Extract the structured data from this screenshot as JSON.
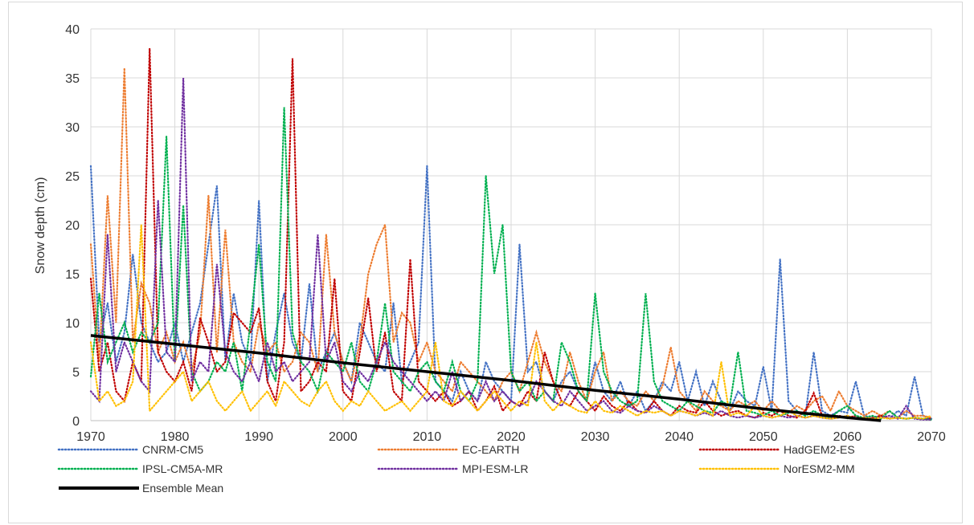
{
  "chart_data": {
    "type": "line",
    "title": "",
    "xlabel": "",
    "ylabel": "Snow depth (cm)",
    "xlim": [
      1970,
      2070
    ],
    "ylim": [
      0,
      40
    ],
    "x_ticks": [
      1970,
      1980,
      1990,
      2000,
      2010,
      2020,
      2030,
      2040,
      2050,
      2060,
      2070
    ],
    "y_ticks": [
      0,
      5,
      10,
      15,
      20,
      25,
      30,
      35,
      40
    ],
    "grid": true,
    "legend_position": "bottom",
    "series": [
      {
        "name": "CNRM-CM5",
        "color": "#4472c4",
        "style": "dotted",
        "x": [
          1970,
          1971,
          1972,
          1973,
          1974,
          1975,
          1976,
          1977,
          1978,
          1979,
          1980,
          1981,
          1982,
          1983,
          1984,
          1985,
          1986,
          1987,
          1988,
          1989,
          1990,
          1991,
          1992,
          1993,
          1994,
          1995,
          1996,
          1997,
          1998,
          1999,
          2000,
          2001,
          2002,
          2003,
          2004,
          2005,
          2006,
          2007,
          2008,
          2009,
          2010,
          2011,
          2012,
          2013,
          2014,
          2015,
          2016,
          2017,
          2018,
          2019,
          2020,
          2021,
          2022,
          2023,
          2024,
          2025,
          2026,
          2027,
          2028,
          2029,
          2030,
          2031,
          2032,
          2033,
          2034,
          2035,
          2036,
          2037,
          2038,
          2039,
          2040,
          2041,
          2042,
          2043,
          2044,
          2045,
          2046,
          2047,
          2048,
          2049,
          2050,
          2051,
          2052,
          2053,
          2054,
          2055,
          2056,
          2057,
          2058,
          2059,
          2060,
          2061,
          2062,
          2063,
          2064,
          2065,
          2066,
          2067,
          2068,
          2069,
          2070
        ],
        "values": [
          26,
          8,
          12,
          6,
          9,
          17,
          10,
          8,
          6,
          7,
          10,
          6,
          9,
          12,
          18,
          24,
          6,
          13,
          8,
          6,
          22.5,
          4,
          9,
          13,
          8,
          6,
          14,
          5,
          7,
          9,
          6,
          4,
          10,
          8,
          6,
          5,
          12,
          4,
          6,
          8,
          26,
          4,
          3,
          2,
          5,
          3,
          2,
          6,
          4,
          3,
          2,
          18,
          5,
          6,
          3,
          2,
          4,
          5,
          3,
          2,
          6,
          3,
          2,
          4,
          1.5,
          3,
          1,
          2,
          4,
          3,
          6,
          2,
          5,
          1.5,
          4,
          2,
          1,
          3,
          2,
          1.5,
          5.5,
          1,
          16.5,
          2,
          1,
          0.5,
          7,
          1,
          0.5,
          1,
          0.8,
          4,
          0.5,
          0.3,
          0.5,
          0.2,
          1,
          0.5,
          4.5,
          0.5,
          0.2
        ]
      },
      {
        "name": "EC-EARTH",
        "color": "#ed7d31",
        "style": "dotted",
        "x": [
          1970,
          1971,
          1972,
          1973,
          1974,
          1975,
          1976,
          1977,
          1978,
          1979,
          1980,
          1981,
          1982,
          1983,
          1984,
          1985,
          1986,
          1987,
          1988,
          1989,
          1990,
          1991,
          1992,
          1993,
          1994,
          1995,
          1996,
          1997,
          1998,
          1999,
          2000,
          2001,
          2002,
          2003,
          2004,
          2005,
          2006,
          2007,
          2008,
          2009,
          2010,
          2011,
          2012,
          2013,
          2014,
          2015,
          2016,
          2017,
          2018,
          2019,
          2020,
          2021,
          2022,
          2023,
          2024,
          2025,
          2026,
          2027,
          2028,
          2029,
          2030,
          2031,
          2032,
          2033,
          2034,
          2035,
          2036,
          2037,
          2038,
          2039,
          2040,
          2041,
          2042,
          2043,
          2044,
          2045,
          2046,
          2047,
          2048,
          2049,
          2050,
          2051,
          2052,
          2053,
          2054,
          2055,
          2056,
          2057,
          2058,
          2059,
          2060,
          2061,
          2062,
          2063,
          2064,
          2065,
          2066,
          2067,
          2068,
          2069,
          2070
        ],
        "values": [
          18,
          6,
          23,
          10,
          36,
          8,
          14,
          12,
          7,
          9,
          6,
          8,
          5,
          9,
          23,
          7,
          19.5,
          8,
          6,
          5,
          10,
          7,
          8,
          5,
          6,
          9,
          8,
          5,
          19,
          9,
          6,
          4,
          8,
          15,
          18,
          20,
          8,
          11,
          10,
          6,
          8,
          5,
          4,
          3,
          6,
          5,
          4,
          3,
          2,
          4,
          5,
          3,
          6,
          9,
          6,
          4,
          3,
          7,
          4,
          2,
          5,
          7,
          2,
          3,
          2,
          1.5,
          3,
          2,
          3.5,
          7.5,
          3,
          2,
          1,
          3,
          2,
          1.5,
          1,
          2,
          1.5,
          2,
          1,
          2,
          1,
          0.8,
          1.5,
          1,
          2,
          2.5,
          1,
          3,
          1.5,
          1,
          0.5,
          1,
          0.5,
          1,
          0.3,
          1,
          0.5,
          0.5,
          0.3
        ]
      },
      {
        "name": "HadGEM2-ES",
        "color": "#c00000",
        "style": "dotted",
        "x": [
          1970,
          1971,
          1972,
          1973,
          1974,
          1975,
          1976,
          1977,
          1978,
          1979,
          1980,
          1981,
          1982,
          1983,
          1984,
          1985,
          1986,
          1987,
          1988,
          1989,
          1990,
          1991,
          1992,
          1993,
          1994,
          1995,
          1996,
          1997,
          1998,
          1999,
          2000,
          2001,
          2002,
          2003,
          2004,
          2005,
          2006,
          2007,
          2008,
          2009,
          2010,
          2011,
          2012,
          2013,
          2014,
          2015,
          2016,
          2017,
          2018,
          2019,
          2020,
          2021,
          2022,
          2023,
          2024,
          2025,
          2026,
          2027,
          2028,
          2029,
          2030,
          2031,
          2032,
          2033,
          2034,
          2035,
          2036,
          2037,
          2038,
          2039,
          2040,
          2041,
          2042,
          2043,
          2044,
          2045,
          2046,
          2047,
          2048,
          2049,
          2050,
          2051,
          2052,
          2053,
          2054,
          2055,
          2056,
          2057,
          2058,
          2059,
          2060,
          2061,
          2062,
          2063,
          2064,
          2065,
          2066,
          2067,
          2068,
          2069,
          2070
        ],
        "values": [
          14.5,
          5,
          8,
          3,
          2,
          6,
          4,
          38,
          7,
          5,
          4,
          6,
          3,
          10.5,
          8,
          5,
          6,
          11,
          10,
          9,
          11.5,
          4,
          2,
          8,
          37,
          3,
          4,
          6,
          5,
          14.5,
          3,
          2,
          7,
          12.5,
          5,
          9,
          3,
          2,
          16.5,
          4,
          3,
          2,
          3,
          1.5,
          2,
          3,
          1,
          2,
          3.5,
          1,
          2,
          1.5,
          3,
          2,
          7,
          4,
          2,
          1.5,
          3,
          2,
          1,
          2.5,
          1.5,
          1,
          2,
          1,
          0.8,
          2,
          1,
          0.5,
          1.5,
          1,
          0.8,
          2,
          1,
          0.5,
          0.8,
          1,
          0.5,
          0.3,
          0.8,
          0.5,
          1,
          0.5,
          0.3,
          1,
          2.8,
          0.5,
          0.3,
          0.5,
          0.3,
          0.5,
          0.2,
          0.3,
          0.5,
          0.2,
          0.3,
          0.2,
          0.3,
          0.2,
          0.2
        ]
      },
      {
        "name": "IPSL-CM5A-MR",
        "color": "#00b050",
        "style": "dotted",
        "x": [
          1970,
          1971,
          1972,
          1973,
          1974,
          1975,
          1976,
          1977,
          1978,
          1979,
          1980,
          1981,
          1982,
          1983,
          1984,
          1985,
          1986,
          1987,
          1988,
          1989,
          1990,
          1991,
          1992,
          1993,
          1994,
          1995,
          1996,
          1997,
          1998,
          1999,
          2000,
          2001,
          2002,
          2003,
          2004,
          2005,
          2006,
          2007,
          2008,
          2009,
          2010,
          2011,
          2012,
          2013,
          2014,
          2015,
          2016,
          2017,
          2018,
          2019,
          2020,
          2021,
          2022,
          2023,
          2024,
          2025,
          2026,
          2027,
          2028,
          2029,
          2030,
          2031,
          2032,
          2033,
          2034,
          2035,
          2036,
          2037,
          2038,
          2039,
          2040,
          2041,
          2042,
          2043,
          2044,
          2045,
          2046,
          2047,
          2048,
          2049,
          2050,
          2051,
          2052,
          2053,
          2054,
          2055,
          2056,
          2057,
          2058,
          2059,
          2060,
          2061,
          2062,
          2063,
          2064,
          2065,
          2066,
          2067,
          2068,
          2069,
          2070
        ],
        "values": [
          4.5,
          13,
          6,
          8,
          10,
          7,
          9,
          8,
          10,
          29,
          6,
          22,
          5,
          3,
          4,
          6,
          5,
          8,
          3,
          10,
          18,
          6,
          4,
          32,
          9,
          6,
          5,
          3,
          7,
          6,
          5,
          8,
          4,
          3,
          6,
          12,
          5,
          4,
          3,
          5,
          6,
          4,
          3,
          6,
          3,
          2,
          4,
          25,
          15,
          20,
          5,
          3,
          4,
          2,
          3,
          2,
          8,
          6,
          3,
          2,
          13,
          5,
          3,
          2,
          1.5,
          2,
          13,
          4,
          2,
          1.5,
          1,
          2,
          1.5,
          1,
          0.8,
          2,
          1.5,
          7,
          1,
          0.8,
          0.5,
          1,
          0.5,
          0.8,
          1,
          0.5,
          1,
          0.5,
          0.3,
          1,
          1.5,
          0.5,
          0.3,
          0.5,
          0.2,
          1,
          0.3,
          0.2,
          0.3,
          0.2,
          0.1
        ]
      },
      {
        "name": "MPI-ESM-LR",
        "color": "#7030a0",
        "style": "dotted",
        "x": [
          1970,
          1971,
          1972,
          1973,
          1974,
          1975,
          1976,
          1977,
          1978,
          1979,
          1980,
          1981,
          1982,
          1983,
          1984,
          1985,
          1986,
          1987,
          1988,
          1989,
          1990,
          1991,
          1992,
          1993,
          1994,
          1995,
          1996,
          1997,
          1998,
          1999,
          2000,
          2001,
          2002,
          2003,
          2004,
          2005,
          2006,
          2007,
          2008,
          2009,
          2010,
          2011,
          2012,
          2013,
          2014,
          2015,
          2016,
          2017,
          2018,
          2019,
          2020,
          2021,
          2022,
          2023,
          2024,
          2025,
          2026,
          2027,
          2028,
          2029,
          2030,
          2031,
          2032,
          2033,
          2034,
          2035,
          2036,
          2037,
          2038,
          2039,
          2040,
          2041,
          2042,
          2043,
          2044,
          2045,
          2046,
          2047,
          2048,
          2049,
          2050,
          2051,
          2052,
          2053,
          2054,
          2055,
          2056,
          2057,
          2058,
          2059,
          2060,
          2061,
          2062,
          2063,
          2064,
          2065,
          2066,
          2067,
          2068,
          2069,
          2070
        ],
        "values": [
          3,
          2,
          19,
          5,
          8,
          6,
          4,
          3,
          22.5,
          7,
          6,
          35,
          4,
          6,
          5,
          16,
          7,
          5,
          4,
          6,
          4,
          8,
          5,
          6,
          4,
          5,
          6,
          19,
          6,
          8,
          4,
          3,
          5,
          4,
          6,
          8,
          6,
          5,
          4,
          3,
          2,
          3,
          2,
          5,
          2,
          3,
          2,
          4,
          2,
          3,
          2,
          1.5,
          2,
          4,
          3,
          2,
          1.5,
          3,
          2,
          1,
          1.5,
          2,
          1,
          0.8,
          1.5,
          1,
          0.8,
          1.5,
          1,
          0.5,
          1,
          0.8,
          0.5,
          0.8,
          0.5,
          1,
          0.5,
          0.3,
          0.5,
          0.3,
          0.5,
          0.3,
          0.5,
          0.3,
          0.5,
          0.3,
          0.5,
          0.3,
          0.2,
          0.3,
          0.5,
          0.2,
          0.3,
          0.2,
          0.3,
          0.5,
          0.2,
          1.5,
          0.2,
          0.1,
          0.1
        ]
      },
      {
        "name": "NorESM2-MM",
        "color": "#ffc000",
        "style": "dotted",
        "x": [
          1970,
          1971,
          1972,
          1973,
          1974,
          1975,
          1976,
          1977,
          1978,
          1979,
          1980,
          1981,
          1982,
          1983,
          1984,
          1985,
          1986,
          1987,
          1988,
          1989,
          1990,
          1991,
          1992,
          1993,
          1994,
          1995,
          1996,
          1997,
          1998,
          1999,
          2000,
          2001,
          2002,
          2003,
          2004,
          2005,
          2006,
          2007,
          2008,
          2009,
          2010,
          2011,
          2012,
          2013,
          2014,
          2015,
          2016,
          2017,
          2018,
          2019,
          2020,
          2021,
          2022,
          2023,
          2024,
          2025,
          2026,
          2027,
          2028,
          2029,
          2030,
          2031,
          2032,
          2033,
          2034,
          2035,
          2036,
          2037,
          2038,
          2039,
          2040,
          2041,
          2042,
          2043,
          2044,
          2045,
          2046,
          2047,
          2048,
          2049,
          2050,
          2051,
          2052,
          2053,
          2054,
          2055,
          2056,
          2057,
          2058,
          2059,
          2060,
          2061,
          2062,
          2063,
          2064,
          2065,
          2066,
          2067,
          2068,
          2069,
          2070
        ],
        "values": [
          8,
          2,
          3,
          1.5,
          2,
          4,
          20,
          1,
          2,
          3,
          4,
          5,
          2,
          3,
          4,
          2,
          1,
          2,
          3,
          1,
          2,
          3,
          1.5,
          4,
          3,
          2,
          1.5,
          3,
          4,
          2,
          1,
          2,
          1.5,
          3,
          2,
          1,
          1.5,
          2,
          1,
          2,
          3,
          8,
          2,
          1.5,
          3,
          2,
          1,
          2,
          3,
          2,
          1,
          2,
          1.5,
          8,
          2,
          1,
          2,
          1.5,
          1,
          0.8,
          2,
          1,
          0.8,
          1.5,
          1,
          0.5,
          1,
          0.8,
          1,
          0.5,
          1,
          0.8,
          0.5,
          1,
          0.5,
          6,
          0.5,
          0.8,
          0.5,
          1.5,
          0.5,
          0.3,
          0.5,
          1,
          0.5,
          0.3,
          0.5,
          0.3,
          0.2,
          0.3,
          0.5,
          0.2,
          0.3,
          0.2,
          0.3,
          0.2,
          0.3,
          0.2,
          0.3,
          0.2,
          0.5
        ]
      },
      {
        "name": "Ensemble Mean",
        "color": "#000000",
        "style": "solid",
        "x": [
          1970,
          1980,
          1990,
          2000,
          2010,
          2020,
          2030,
          2040,
          2050,
          2060,
          2064
        ],
        "values": [
          8.7,
          7.8,
          6.9,
          5.9,
          5.0,
          4.1,
          3.1,
          2.2,
          1.2,
          0.3,
          0.0
        ]
      }
    ]
  }
}
